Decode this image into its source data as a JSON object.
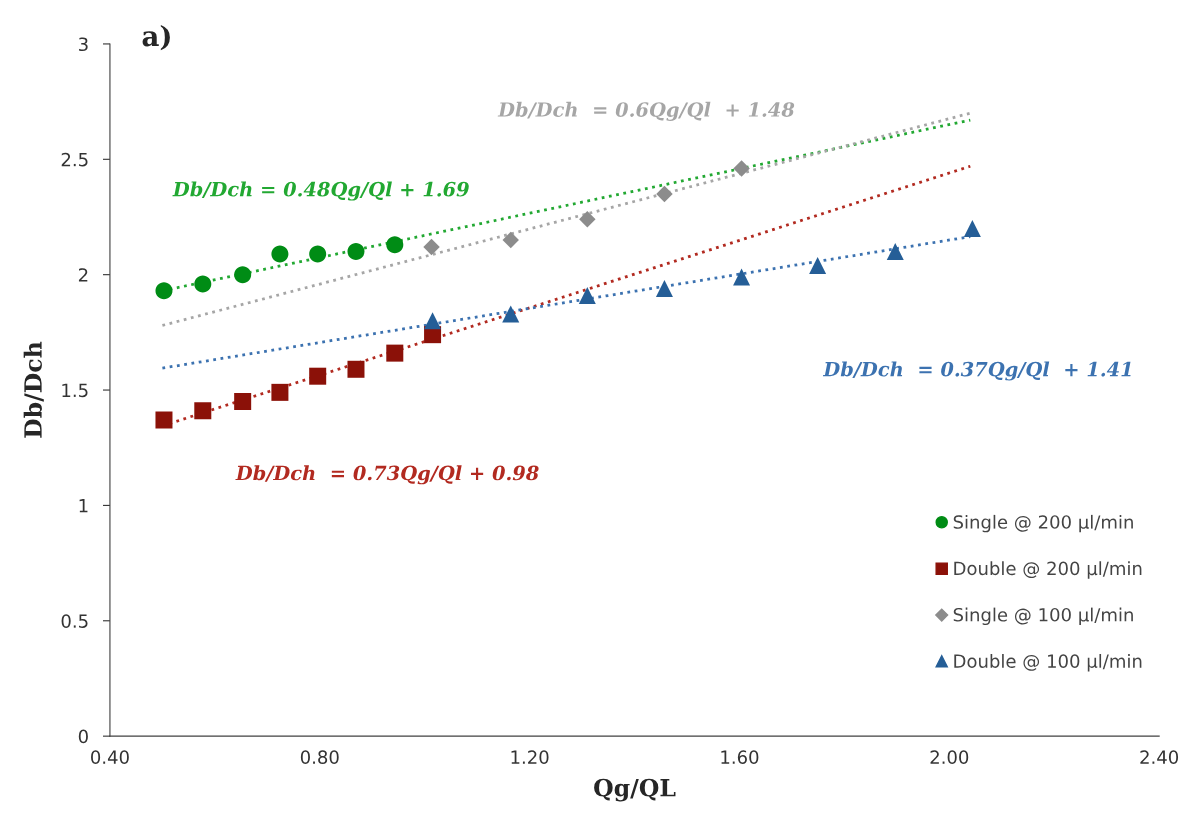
{
  "chart_data": {
    "type": "scatter",
    "title": "a)",
    "xlabel": "Qg/QL",
    "ylabel": "Db/Dch",
    "xlim": [
      0.4,
      2.4
    ],
    "xticks": [
      {
        "value": 0.4,
        "label": "0.40"
      },
      {
        "value": 0.8,
        "label": "0.80"
      },
      {
        "value": 1.2,
        "label": "1.20"
      },
      {
        "value": 1.6,
        "label": "1.60"
      },
      {
        "value": 2.0,
        "label": "2.00"
      },
      {
        "value": 2.4,
        "label": "2.40"
      }
    ],
    "ylim": [
      0,
      3
    ],
    "yticks": [
      0,
      0.5,
      1,
      1.5,
      2,
      2.5,
      3
    ],
    "grid": false,
    "legend": "bottom right",
    "series": [
      {
        "name": "Single @ 200 µl/min",
        "marker": "circle",
        "color": "#008c15",
        "x": [
          0.503,
          0.577,
          0.653,
          0.724,
          0.796,
          0.869,
          0.943
        ],
        "values": [
          1.93,
          1.96,
          2.0,
          2.09,
          2.09,
          2.1,
          2.13
        ]
      },
      {
        "name": "Double @ 200 µl/min",
        "marker": "square",
        "color": "#8b1108",
        "x": [
          0.503,
          0.577,
          0.653,
          0.724,
          0.796,
          0.869,
          0.943,
          1.015
        ],
        "values": [
          1.37,
          1.41,
          1.45,
          1.49,
          1.56,
          1.59,
          1.66,
          1.74
        ]
      },
      {
        "name": "Single @ 100 µl/min",
        "marker": "diamond",
        "color": "#8c8c8c",
        "x": [
          1.013,
          1.164,
          1.31,
          1.457,
          1.604
        ],
        "values": [
          2.12,
          2.15,
          2.24,
          2.35,
          2.46
        ]
      },
      {
        "name": "Double @ 100 µl/min",
        "marker": "triangle",
        "color": "#255e97",
        "x": [
          1.015,
          1.164,
          1.31,
          1.457,
          1.604,
          1.749,
          1.897,
          2.044
        ],
        "values": [
          1.8,
          1.83,
          1.91,
          1.94,
          1.99,
          2.04,
          2.1,
          2.2
        ]
      },
      {
        "type": "line",
        "line_style": "dotted",
        "color": "#22a832",
        "x": [
          0.5,
          2.04
        ],
        "values": [
          1.93,
          2.67
        ]
      },
      {
        "type": "line",
        "line_style": "dotted",
        "color": "#b22a20",
        "x": [
          0.5,
          2.04
        ],
        "values": [
          1.345,
          2.47
        ]
      },
      {
        "type": "line",
        "line_style": "dotted",
        "color": "#a6a6a6",
        "x": [
          0.5,
          2.04
        ],
        "values": [
          1.78,
          2.7
        ]
      },
      {
        "type": "line",
        "line_style": "dotted",
        "color": "#3c72b0",
        "x": [
          0.5,
          2.04
        ],
        "values": [
          1.595,
          2.165
        ]
      }
    ],
    "annotations": [
      "Db/Dch = 0.48Qg/Ql + 1.69",
      "Db/Dch  = 0.73Qg/Ql + 0.98",
      "Db/Dch  = 0.6Qg/Ql  + 1.48",
      "Db/Dch  = 0.37Qg/Ql  + 1.41"
    ]
  }
}
